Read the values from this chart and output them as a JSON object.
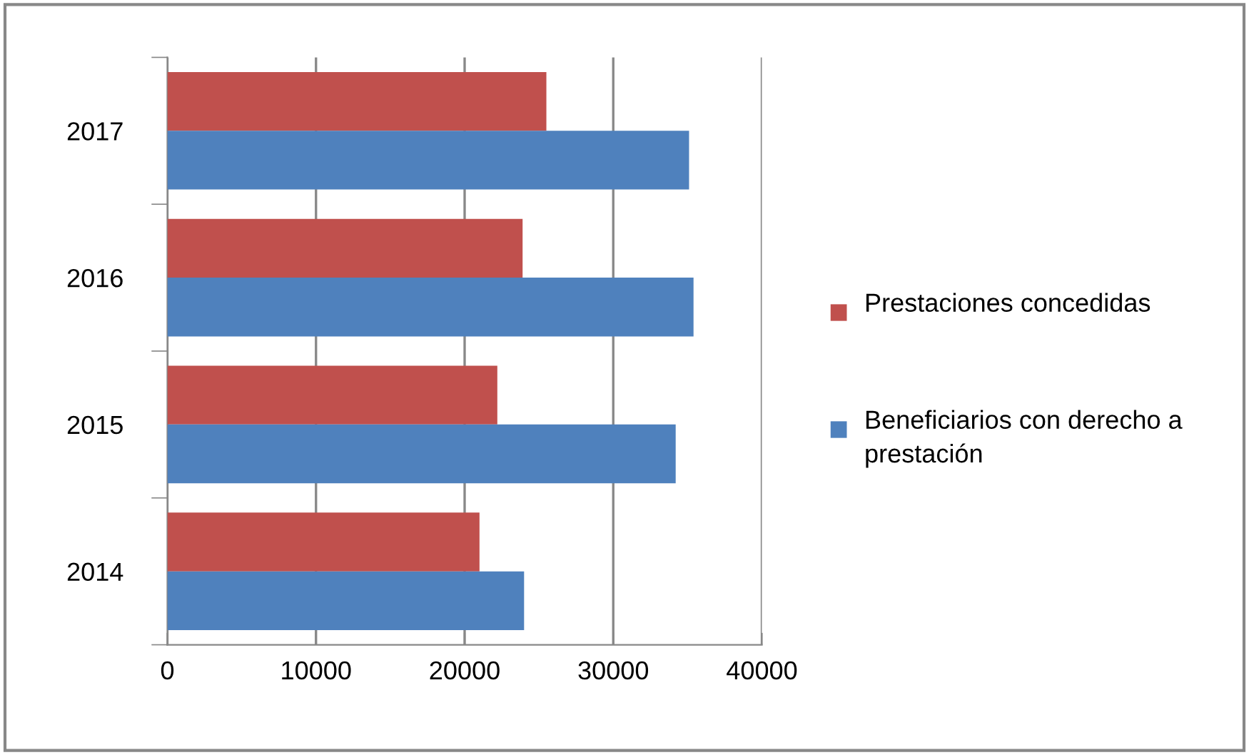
{
  "chart_data": {
    "type": "bar",
    "orientation": "horizontal",
    "categories": [
      "2017",
      "2016",
      "2015",
      "2014"
    ],
    "series": [
      {
        "name": "Prestaciones concedidas",
        "color": "#c0504d",
        "values": [
          25500,
          23900,
          22200,
          21000
        ]
      },
      {
        "name": "Beneficiarios con derecho a prestación",
        "color": "#4f81bd",
        "values": [
          35100,
          35400,
          34200,
          24000
        ]
      }
    ],
    "xlim": [
      0,
      40000
    ],
    "xticks": [
      0,
      10000,
      20000,
      30000,
      40000
    ],
    "grid": "x",
    "legend": "right"
  }
}
